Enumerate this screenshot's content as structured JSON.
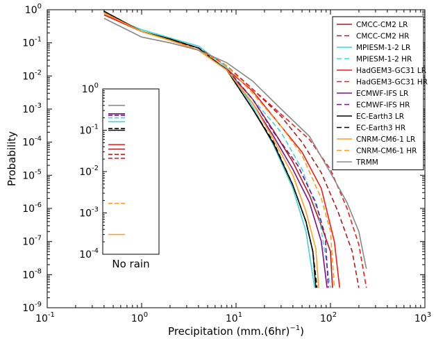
{
  "chart_data": [
    {
      "type": "line",
      "title": "",
      "xlabel": "Precipitation (mm.(6hr)",
      "xlabel_exponent": "−1",
      "xlabel_suffix": ")",
      "ylabel": "Probability",
      "xscale": "log",
      "yscale": "log",
      "xlim": [
        0.1,
        1000
      ],
      "ylim": [
        1e-09,
        1
      ],
      "xticks": [
        {
          "base": "10",
          "exp": "-1",
          "value": 0.1
        },
        {
          "base": "10",
          "exp": "0",
          "value": 1
        },
        {
          "base": "10",
          "exp": "1",
          "value": 10
        },
        {
          "base": "10",
          "exp": "2",
          "value": 100
        },
        {
          "base": "10",
          "exp": "3",
          "value": 1000
        }
      ],
      "yticks": [
        {
          "base": "10",
          "exp": "0",
          "value": 1
        },
        {
          "base": "10",
          "exp": "-1",
          "value": 0.1
        },
        {
          "base": "10",
          "exp": "-2",
          "value": 0.01
        },
        {
          "base": "10",
          "exp": "-3",
          "value": 0.001
        },
        {
          "base": "10",
          "exp": "-4",
          "value": 0.0001
        },
        {
          "base": "10",
          "exp": "-5",
          "value": 1e-05
        },
        {
          "base": "10",
          "exp": "-6",
          "value": 1e-06
        },
        {
          "base": "10",
          "exp": "-7",
          "value": 1e-07
        },
        {
          "base": "10",
          "exp": "-8",
          "value": 1e-08
        },
        {
          "base": "10",
          "exp": "-9",
          "value": 1e-09
        }
      ],
      "grid": false,
      "legend_position": "top-right",
      "series": [
        {
          "name": "CMCC-CM2 LR",
          "color": "#b11a1a",
          "dash": "solid",
          "x": [
            0.4,
            1,
            2,
            4,
            8,
            15,
            25,
            40,
            60,
            80,
            100,
            105
          ],
          "y": [
            0.7,
            0.22,
            0.12,
            0.06,
            0.015,
            0.002,
            0.00022,
            2.5e-05,
            2.5e-06,
            3e-07,
            5e-08,
            4e-09
          ]
        },
        {
          "name": "CMCC-CM2 HR",
          "color": "#b11a1a",
          "dash": "dashed",
          "x": [
            0.4,
            1,
            2,
            4,
            8,
            15,
            30,
            50,
            80,
            120,
            170,
            200
          ],
          "y": [
            0.8,
            0.22,
            0.12,
            0.07,
            0.02,
            0.004,
            0.0006,
            0.0001,
            1.2e-05,
            8e-07,
            5e-08,
            4e-09
          ]
        },
        {
          "name": "MPIESM-1-2 LR",
          "color": "#40d6d6",
          "dash": "solid",
          "x": [
            0.4,
            1,
            2,
            4,
            8,
            15,
            25,
            40,
            55,
            68
          ],
          "y": [
            0.7,
            0.25,
            0.14,
            0.08,
            0.018,
            0.0012,
            8e-05,
            4e-06,
            2e-07,
            4e-09
          ]
        },
        {
          "name": "MPIESM-1-2 HR",
          "color": "#40d6d6",
          "dash": "dashed",
          "x": [
            0.4,
            1,
            2,
            4,
            8,
            15,
            30,
            50,
            75,
            100
          ],
          "y": [
            0.7,
            0.25,
            0.14,
            0.08,
            0.018,
            0.002,
            0.0002,
            1.5e-05,
            7e-07,
            4e-09
          ]
        },
        {
          "name": "HadGEM3-GC31 LR",
          "color": "#ee1c1c",
          "dash": "solid",
          "x": [
            0.4,
            1,
            2,
            4,
            8,
            15,
            30,
            50,
            80,
            110,
            125
          ],
          "y": [
            0.7,
            0.22,
            0.12,
            0.06,
            0.016,
            0.0035,
            0.0003,
            5e-05,
            4e-06,
            1e-07,
            4e-09
          ]
        },
        {
          "name": "HadGEM3-GC31 HR",
          "color": "#ee1c1c",
          "dash": "dashed",
          "x": [
            0.4,
            1,
            2,
            4,
            8,
            15,
            30,
            60,
            100,
            150,
            200,
            240
          ],
          "y": [
            0.8,
            0.22,
            0.12,
            0.07,
            0.02,
            0.004,
            0.0007,
            0.00012,
            1.5e-05,
            1e-06,
            8e-08,
            4e-09
          ]
        },
        {
          "name": "ECMWF-IFS LR",
          "color": "#7b0f8e",
          "dash": "solid",
          "x": [
            0.4,
            1,
            2,
            4,
            8,
            15,
            25,
            40,
            60,
            80,
            92
          ],
          "y": [
            0.8,
            0.22,
            0.12,
            0.06,
            0.015,
            0.0015,
            0.00015,
            1.5e-05,
            1.5e-06,
            1e-07,
            4e-09
          ]
        },
        {
          "name": "ECMWF-IFS HR",
          "color": "#7b0f8e",
          "dash": "dashed",
          "x": [
            0.4,
            1,
            2,
            4,
            8,
            15,
            25,
            45,
            70,
            88,
            95
          ],
          "y": [
            0.8,
            0.22,
            0.12,
            0.06,
            0.016,
            0.002,
            0.0002,
            2e-05,
            1.5e-06,
            1.5e-07,
            4e-09
          ]
        },
        {
          "name": "EC-Earth3 LR",
          "color": "#000000",
          "dash": "solid",
          "x": [
            0.4,
            1,
            2,
            4,
            8,
            15,
            25,
            40,
            55,
            65,
            70
          ],
          "y": [
            0.9,
            0.22,
            0.13,
            0.07,
            0.015,
            0.001,
            9e-05,
            5e-06,
            4e-07,
            5e-08,
            4e-09
          ]
        },
        {
          "name": "EC-Earth3 HR",
          "color": "#000000",
          "dash": "dashed",
          "x": [
            0.4,
            1,
            2,
            4,
            8,
            15,
            25,
            40,
            55,
            65,
            72
          ],
          "y": [
            0.9,
            0.22,
            0.13,
            0.07,
            0.015,
            0.001,
            0.0001,
            5e-06,
            4e-07,
            5e-08,
            4e-09
          ]
        },
        {
          "name": "CNRM-CM6-1 LR",
          "color": "#ffa01a",
          "dash": "solid",
          "x": [
            0.4,
            1,
            2,
            4,
            8,
            15,
            25,
            40,
            55,
            70,
            75
          ],
          "y": [
            0.8,
            0.22,
            0.12,
            0.06,
            0.015,
            0.0015,
            0.00012,
            1e-05,
            8e-07,
            6e-08,
            4e-09
          ]
        },
        {
          "name": "CNRM-CM6-1 HR",
          "color": "#ffa01a",
          "dash": "dashed",
          "x": [
            0.4,
            1,
            2,
            4,
            8,
            15,
            30,
            50,
            80,
            100,
            110
          ],
          "y": [
            0.8,
            0.22,
            0.12,
            0.06,
            0.02,
            0.003,
            0.0003,
            4e-05,
            2e-06,
            2e-07,
            4e-09
          ]
        },
        {
          "name": "TRMM",
          "color": "#888888",
          "dash": "solid",
          "x": [
            0.4,
            1,
            2,
            4,
            8,
            15,
            30,
            60,
            100,
            150,
            200,
            220,
            240
          ],
          "y": [
            0.55,
            0.15,
            0.1,
            0.06,
            0.025,
            0.007,
            0.001,
            0.00015,
            1.2e-05,
            1.5e-06,
            2e-07,
            5e-08,
            1.5e-08
          ]
        }
      ]
    },
    {
      "type": "line",
      "title": "",
      "xlabel": "No rain",
      "ylabel": "",
      "yscale": "log",
      "ylim": [
        0.0001,
        1
      ],
      "yticks": [
        {
          "base": "10",
          "exp": "0",
          "value": 1
        },
        {
          "base": "10",
          "exp": "-1",
          "value": 0.1
        },
        {
          "base": "10",
          "exp": "-2",
          "value": 0.01
        },
        {
          "base": "10",
          "exp": "-3",
          "value": 0.001
        },
        {
          "base": "10",
          "exp": "-4",
          "value": 0.0001
        }
      ],
      "series": [
        {
          "name": "CMCC-CM2 LR",
          "color": "#b11a1a",
          "dash": "solid",
          "value": 0.035
        },
        {
          "name": "CMCC-CM2 HR",
          "color": "#b11a1a",
          "dash": "dashed",
          "value": 0.026
        },
        {
          "name": "MPIESM-1-2 LR",
          "color": "#40d6d6",
          "dash": "solid",
          "value": 0.16
        },
        {
          "name": "MPIESM-1-2 HR",
          "color": "#40d6d6",
          "dash": "dashed",
          "value": 0.2
        },
        {
          "name": "HadGEM3-GC31 LR",
          "color": "#ee1c1c",
          "dash": "solid",
          "value": 0.045
        },
        {
          "name": "HadGEM3-GC31 HR",
          "color": "#ee1c1c",
          "dash": "dashed",
          "value": 0.021
        },
        {
          "name": "ECMWF-IFS LR",
          "color": "#7b0f8e",
          "dash": "solid",
          "value": 0.25
        },
        {
          "name": "ECMWF-IFS HR",
          "color": "#7b0f8e",
          "dash": "dashed",
          "value": 0.23
        },
        {
          "name": "EC-Earth3 LR",
          "color": "#000000",
          "dash": "solid",
          "value": 0.1
        },
        {
          "name": "EC-Earth3 HR",
          "color": "#000000",
          "dash": "dashed",
          "value": 0.11
        },
        {
          "name": "CNRM-CM6-1 LR",
          "color": "#ffa01a",
          "dash": "solid",
          "value": 0.0003
        },
        {
          "name": "CNRM-CM6-1 HR",
          "color": "#ffa01a",
          "dash": "dashed",
          "value": 0.0017
        },
        {
          "name": "TRMM",
          "color": "#888888",
          "dash": "solid",
          "value": 0.4
        }
      ]
    }
  ]
}
